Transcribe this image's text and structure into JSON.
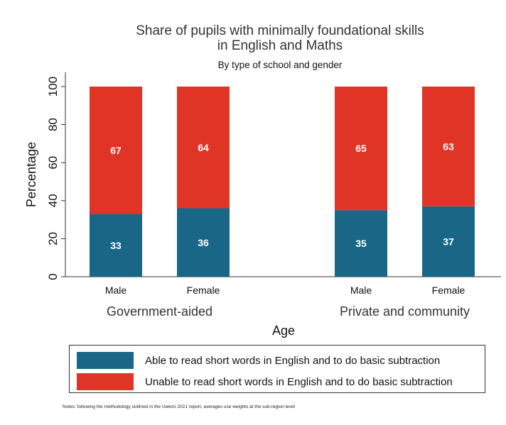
{
  "colors": {
    "able": "#1a6687",
    "unable": "#e03426"
  },
  "chart_data": {
    "type": "bar",
    "stacked": true,
    "title": "Share of pupils with minimally foundational skills",
    "title_line2": "in English and Maths",
    "subtitle": "By type of school and gender",
    "xlabel": "Age",
    "ylabel": "Percentage",
    "ylim": [
      0,
      100
    ],
    "yticks": [
      "0",
      "20",
      "40",
      "60",
      "80",
      "100"
    ],
    "groups": [
      {
        "label": "Government-aided",
        "categories": [
          "Male",
          "Female"
        ]
      },
      {
        "label": "Private and community",
        "categories": [
          "Male",
          "Female"
        ]
      }
    ],
    "categories": [
      "Male",
      "Female",
      "Male",
      "Female"
    ],
    "series": [
      {
        "name": "Able to read short words in English and to do basic subtraction",
        "values": [
          33,
          36,
          35,
          37
        ]
      },
      {
        "name": "Unable to read short words in English and to do basic subtraction",
        "values": [
          67,
          64,
          65,
          63
        ]
      }
    ],
    "grid": false,
    "legend_position": "bottom"
  },
  "notes": "Notes: following the methodology outlined in the Uwezo 2021 report, averages use weights at the sub-region level"
}
